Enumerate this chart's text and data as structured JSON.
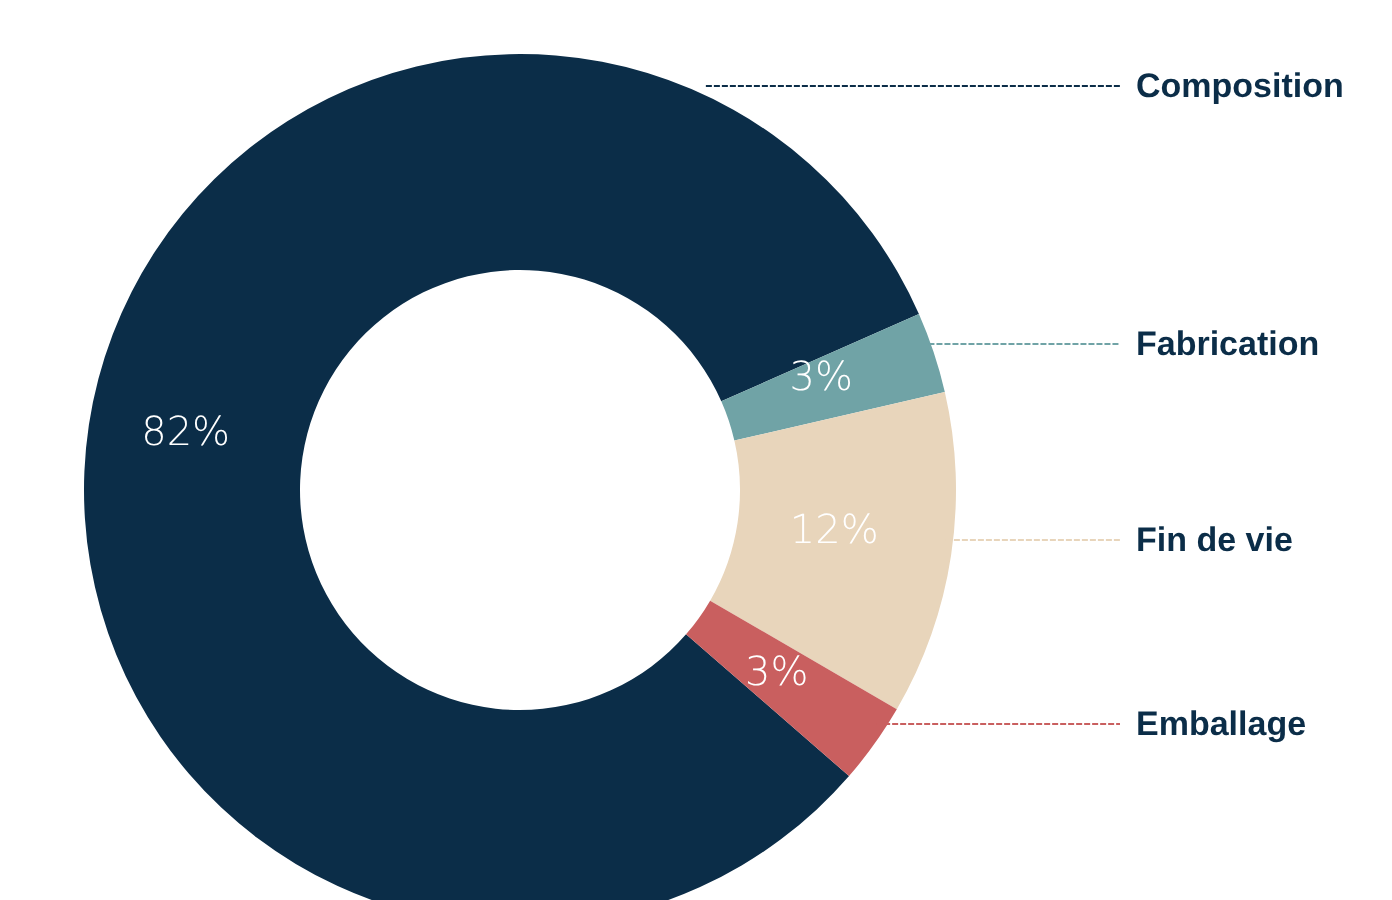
{
  "chart_data": {
    "type": "donut",
    "categories": [
      "Composition",
      "Fabrication",
      "Fin de vie",
      "Emballage"
    ],
    "values": [
      82,
      3,
      12,
      3
    ],
    "colors": [
      "#0b2d48",
      "#70a3a6",
      "#e8d5bb",
      "#c95f5f"
    ],
    "value_labels": [
      "82%",
      "3%",
      "12%",
      "3%"
    ],
    "legend": false
  }
}
